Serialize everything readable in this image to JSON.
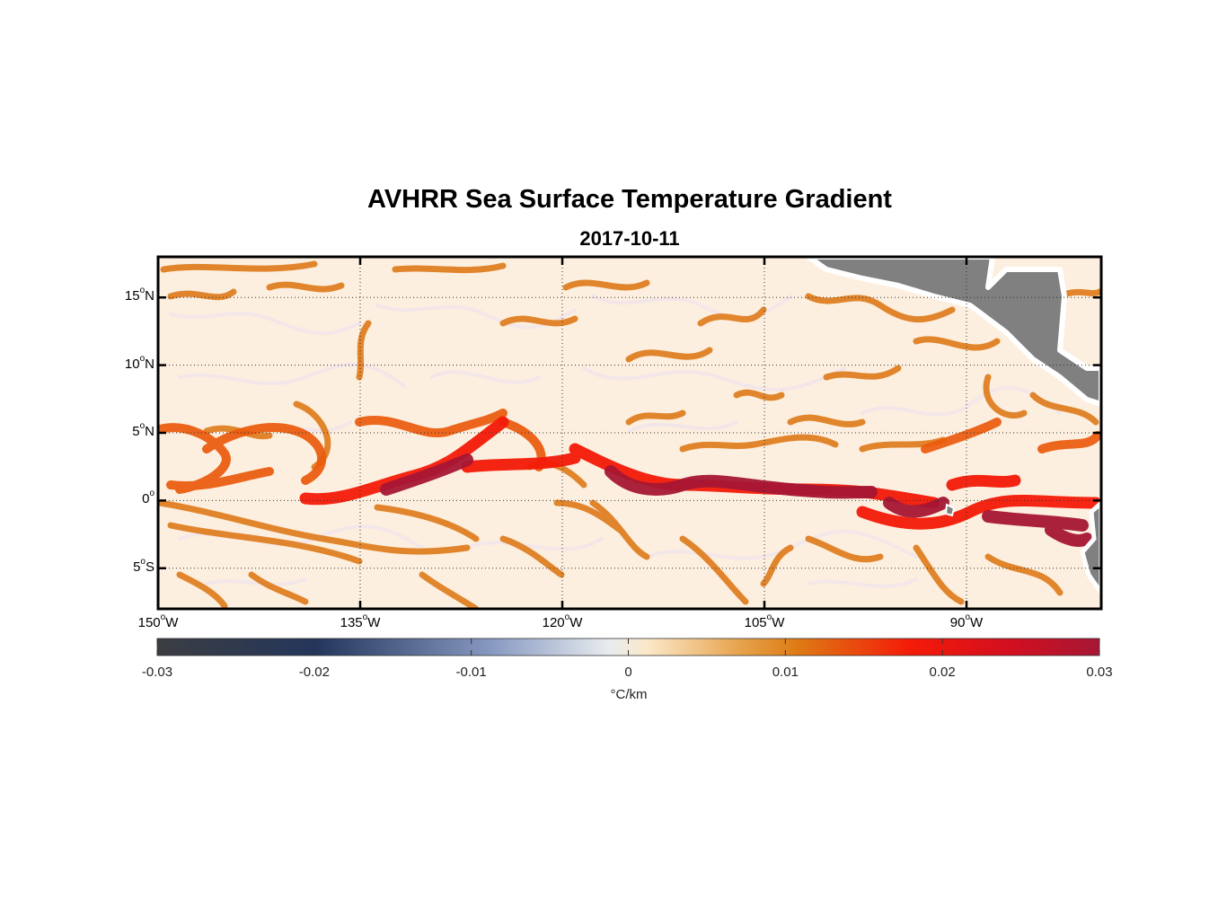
{
  "title": "AVHRR Sea Surface Temperature Gradient",
  "subtitle": "2017-10-11",
  "map": {
    "lon_range": [
      -150,
      -80
    ],
    "lat_range": [
      -8,
      18
    ],
    "gridlines": true,
    "land_color": "#808080",
    "lat_ticks": [
      {
        "value": 15,
        "deg": "15",
        "hem": "N"
      },
      {
        "value": 10,
        "deg": "10",
        "hem": "N"
      },
      {
        "value": 5,
        "deg": "5",
        "hem": "N"
      },
      {
        "value": 0,
        "deg": "0",
        "hem": ""
      },
      {
        "value": -5,
        "deg": "5",
        "hem": "S"
      }
    ],
    "lon_ticks": [
      {
        "value": -150,
        "deg": "150",
        "hem": "W"
      },
      {
        "value": -135,
        "deg": "135",
        "hem": "W"
      },
      {
        "value": -120,
        "deg": "120",
        "hem": "W"
      },
      {
        "value": -105,
        "deg": "105",
        "hem": "W"
      },
      {
        "value": -90,
        "deg": "90",
        "hem": "W"
      }
    ]
  },
  "colorbar": {
    "range": [
      -0.03,
      0.03
    ],
    "ticks": [
      "-0.03",
      "-0.02",
      "-0.01",
      "0",
      "0.01",
      "0.02",
      "0.03"
    ],
    "unit": "°C/km",
    "stops": [
      "#3b3d41",
      "#24365c",
      "#8b9cc4",
      "#f7f2e8",
      "#fbe8c8",
      "#de8b1c",
      "#f41a08",
      "#a61634"
    ]
  }
}
